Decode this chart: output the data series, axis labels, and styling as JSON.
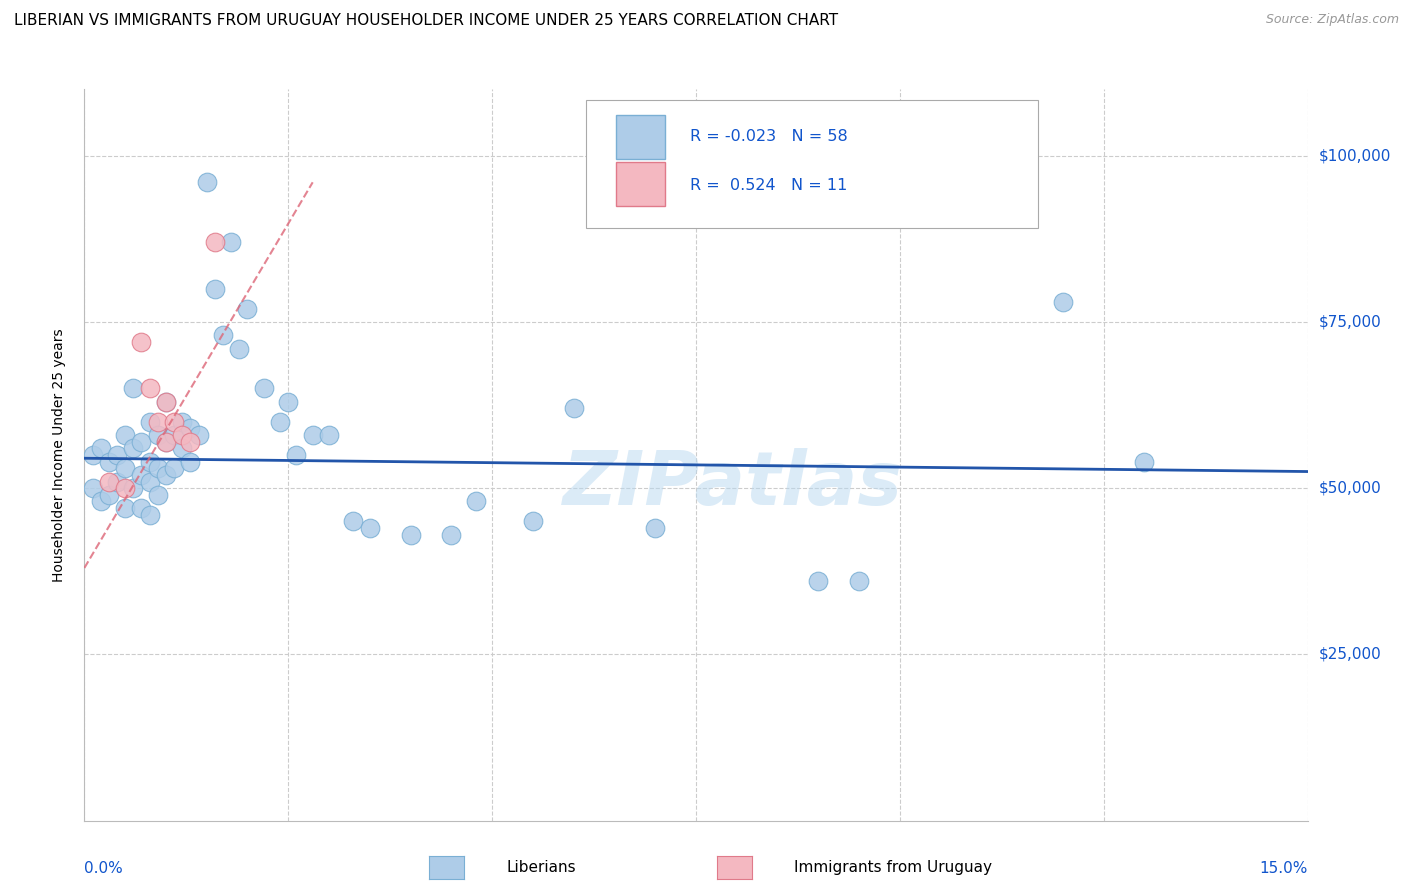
{
  "title": "LIBERIAN VS IMMIGRANTS FROM URUGUAY HOUSEHOLDER INCOME UNDER 25 YEARS CORRELATION CHART",
  "source": "Source: ZipAtlas.com",
  "ylabel": "Householder Income Under 25 years",
  "xlim": [
    0.0,
    0.15
  ],
  "ylim": [
    0,
    110000
  ],
  "watermark": "ZIPatlas",
  "liberian_color": "#aecce8",
  "liberian_edge": "#7aafd4",
  "uruguay_color": "#f4b8c1",
  "uruguay_edge": "#e07a8a",
  "trendline1_color": "#2255aa",
  "trendline2_color": "#dd6677",
  "R1": -0.023,
  "N1": 58,
  "R2": 0.524,
  "N2": 11,
  "grid_color": "#cccccc",
  "background_color": "#ffffff",
  "liberian_x": [
    0.001,
    0.001,
    0.002,
    0.002,
    0.003,
    0.003,
    0.004,
    0.004,
    0.005,
    0.005,
    0.005,
    0.006,
    0.006,
    0.006,
    0.007,
    0.007,
    0.007,
    0.008,
    0.008,
    0.008,
    0.008,
    0.009,
    0.009,
    0.009,
    0.01,
    0.01,
    0.01,
    0.011,
    0.011,
    0.012,
    0.012,
    0.013,
    0.013,
    0.014,
    0.015,
    0.016,
    0.017,
    0.018,
    0.019,
    0.02,
    0.022,
    0.024,
    0.025,
    0.026,
    0.028,
    0.03,
    0.033,
    0.035,
    0.04,
    0.045,
    0.048,
    0.055,
    0.06,
    0.07,
    0.09,
    0.095,
    0.12,
    0.13
  ],
  "liberian_y": [
    55000,
    50000,
    56000,
    48000,
    54000,
    49000,
    55000,
    51000,
    58000,
    53000,
    47000,
    65000,
    56000,
    50000,
    57000,
    52000,
    47000,
    60000,
    54000,
    51000,
    46000,
    58000,
    53000,
    49000,
    63000,
    57000,
    52000,
    58000,
    53000,
    60000,
    56000,
    59000,
    54000,
    58000,
    96000,
    80000,
    73000,
    87000,
    71000,
    77000,
    65000,
    60000,
    63000,
    55000,
    58000,
    58000,
    45000,
    44000,
    43000,
    43000,
    48000,
    45000,
    62000,
    44000,
    36000,
    36000,
    78000,
    54000
  ],
  "uruguay_x": [
    0.003,
    0.005,
    0.007,
    0.008,
    0.009,
    0.01,
    0.01,
    0.011,
    0.012,
    0.013,
    0.016
  ],
  "uruguay_y": [
    51000,
    50000,
    72000,
    65000,
    60000,
    63000,
    57000,
    60000,
    58000,
    57000,
    87000
  ]
}
